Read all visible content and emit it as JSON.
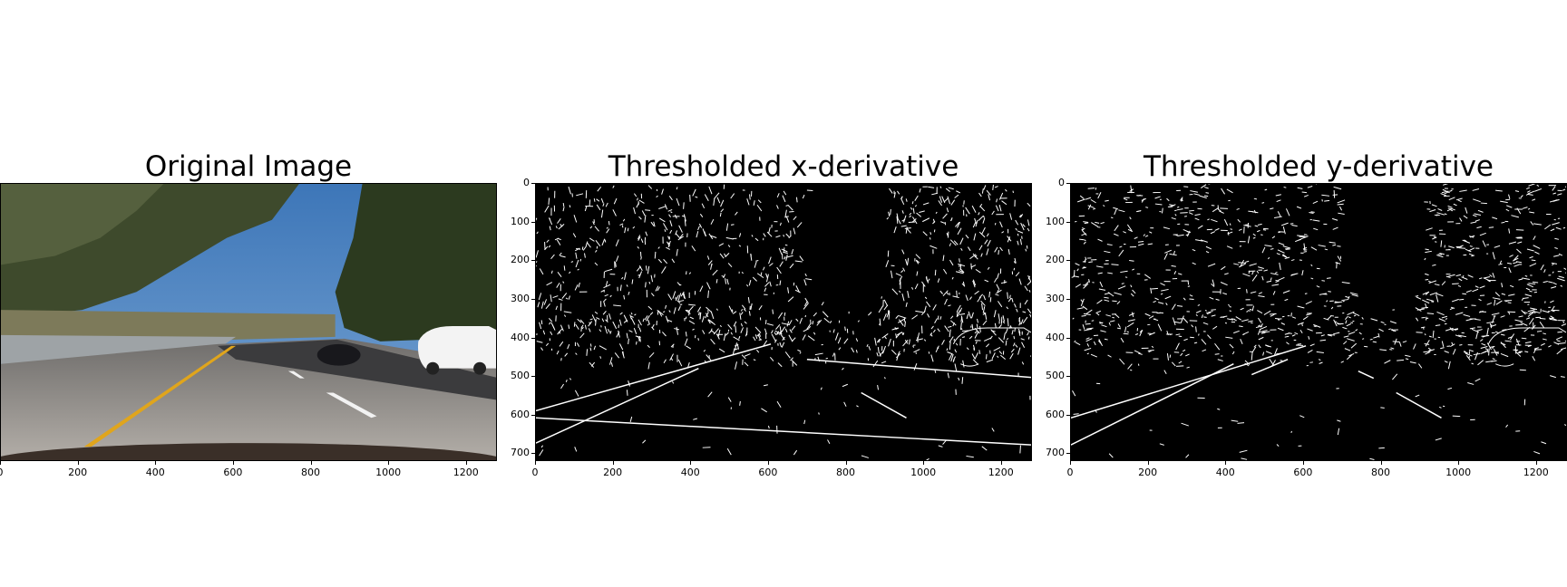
{
  "figure": {
    "panels": [
      {
        "title": "Original Image",
        "kind": "photo",
        "x_ticks": [
          "0",
          "200",
          "400",
          "600",
          "800",
          "1000",
          "1200"
        ],
        "x_tick_values": [
          0,
          200,
          400,
          600,
          800,
          1000,
          1200
        ],
        "y_ticks": [],
        "y_tick_values": [],
        "x_range": [
          0,
          1280
        ],
        "y_range": [
          0,
          720
        ]
      },
      {
        "title": "Thresholded x-derivative",
        "kind": "binary-edges-x",
        "x_ticks": [
          "0",
          "200",
          "400",
          "600",
          "800",
          "1000",
          "1200"
        ],
        "x_tick_values": [
          0,
          200,
          400,
          600,
          800,
          1000,
          1200
        ],
        "y_ticks": [
          "0",
          "100",
          "200",
          "300",
          "400",
          "500",
          "600",
          "700"
        ],
        "y_tick_values": [
          0,
          100,
          200,
          300,
          400,
          500,
          600,
          700
        ],
        "x_range": [
          0,
          1280
        ],
        "y_range": [
          0,
          720
        ]
      },
      {
        "title": "Thresholded y-derivative",
        "kind": "binary-edges-y",
        "x_ticks": [
          "0",
          "200",
          "400",
          "600",
          "800",
          "1000",
          "1200"
        ],
        "x_tick_values": [
          0,
          200,
          400,
          600,
          800,
          1000,
          1200
        ],
        "y_ticks": [
          "0",
          "100",
          "200",
          "300",
          "400",
          "500",
          "600",
          "700"
        ],
        "y_tick_values": [
          0,
          100,
          200,
          300,
          400,
          500,
          600,
          700
        ],
        "x_range": [
          0,
          1280
        ],
        "y_range": [
          0,
          720
        ]
      }
    ],
    "colors": {
      "sky": "#4f86c0",
      "road": "#8d8a86",
      "lane_yellow": "#e0a51c",
      "edge_white": "#ffffff",
      "edge_background": "#000000"
    }
  }
}
